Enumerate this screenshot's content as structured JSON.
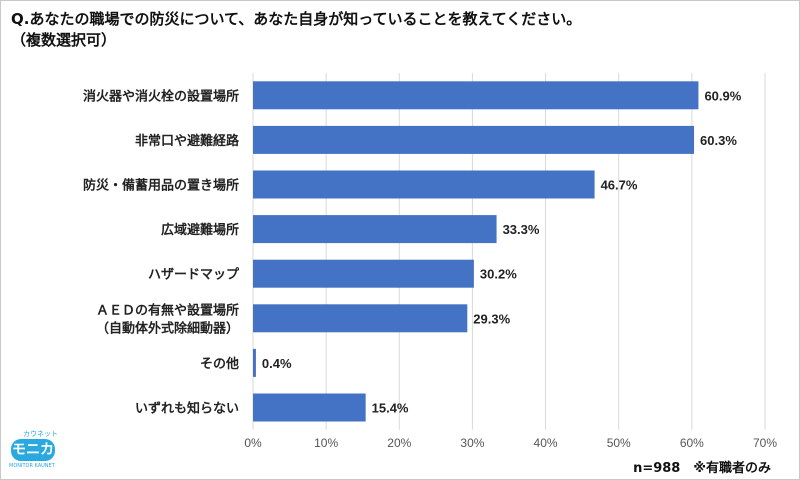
{
  "title_line1": "Q.あなたの職場での防災について、あなた自身が知っていることを教えてください。",
  "title_line2": "（複数選択可）",
  "note": "n=988　※有職者のみ",
  "logo": {
    "small": "カウネット",
    "main": "モニカ",
    "sub": "MONITOR KAUNET"
  },
  "chart_data": {
    "type": "bar",
    "orientation": "horizontal",
    "categories": [
      [
        "消火器や消火栓の設置場所"
      ],
      [
        "非常口や避難経路"
      ],
      [
        "防災・備蓄用品の置き場所"
      ],
      [
        "広域避難場所"
      ],
      [
        "ハザードマップ"
      ],
      [
        "ＡＥＤの有無や設置場所",
        "（自動体外式除細動器）"
      ],
      [
        "その他"
      ],
      [
        "いずれも知らない"
      ]
    ],
    "values": [
      60.9,
      60.3,
      46.7,
      33.3,
      30.2,
      29.3,
      0.4,
      15.4
    ],
    "data_labels": [
      "60.9%",
      "60.3%",
      "46.7%",
      "33.3%",
      "30.2%",
      "29.3%",
      "0.4%",
      "15.4%"
    ],
    "xlim": [
      0,
      70
    ],
    "ticks": [
      "0%",
      "10%",
      "20%",
      "30%",
      "40%",
      "50%",
      "60%",
      "70%"
    ],
    "grid": true,
    "bar_color": "#4472c4"
  }
}
